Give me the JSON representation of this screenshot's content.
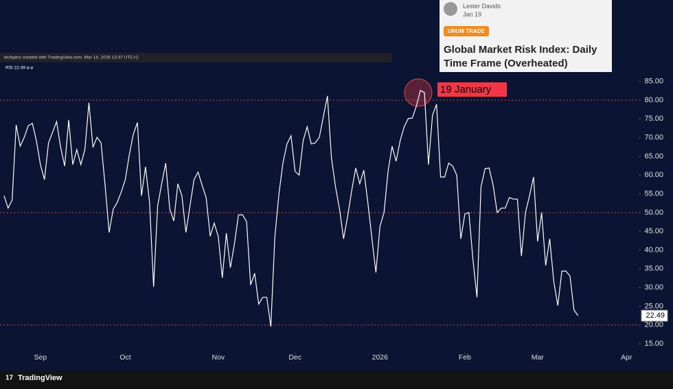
{
  "chart_data": {
    "type": "line",
    "attribution": "techpers created with TradingView.com, Mar 14, 2026 13:47 UTC+2",
    "indicator_label": "RSI 22.49 ⌀ ⌀",
    "annotation": "19 January",
    "xlim": [
      -1,
      157
    ],
    "xticks": [
      {
        "value": 9,
        "label": "Sep"
      },
      {
        "value": 30,
        "label": "Oct"
      },
      {
        "value": 53,
        "label": "Nov"
      },
      {
        "value": 72,
        "label": "Dec"
      },
      {
        "value": 93,
        "label": "2026"
      },
      {
        "value": 114,
        "label": "Feb"
      },
      {
        "value": 132,
        "label": "Mar"
      },
      {
        "value": 154,
        "label": "Apr"
      }
    ],
    "ylim": [
      13,
      87.5
    ],
    "yticks": [
      {
        "value": 15,
        "label": "15.00"
      },
      {
        "value": 20,
        "label": "20.00"
      },
      {
        "value": 25,
        "label": "25.00"
      },
      {
        "value": 30,
        "label": "30.00"
      },
      {
        "value": 35,
        "label": "35.00"
      },
      {
        "value": 40,
        "label": "40.00"
      },
      {
        "value": 45,
        "label": "45.00"
      },
      {
        "value": 50,
        "label": "50.00"
      },
      {
        "value": 55,
        "label": "55.00"
      },
      {
        "value": 60,
        "label": "60.00"
      },
      {
        "value": 65,
        "label": "65.00"
      },
      {
        "value": 70,
        "label": "70.00"
      },
      {
        "value": 75,
        "label": "75.00"
      },
      {
        "value": 80,
        "label": "80.00"
      },
      {
        "value": 85,
        "label": "85.00"
      }
    ],
    "hlines": [
      80,
      50,
      20
    ],
    "hline_color": "#c0504d",
    "series": [
      {
        "name": "RSI",
        "color": "#ffffff",
        "values": [
          54.5,
          51.2,
          53.3,
          73.4,
          67.7,
          70.1,
          73.2,
          73.8,
          69.2,
          62.8,
          58.8,
          68.6,
          71.4,
          74.3,
          67.4,
          62.4,
          74.7,
          62.8,
          66.8,
          62.8,
          66.8,
          79.3,
          67.4,
          70.1,
          68.6,
          57.3,
          44.7,
          50.9,
          52.7,
          55.5,
          58.8,
          65.5,
          71.0,
          74.0,
          54.5,
          62.2,
          52.7,
          30.2,
          51.8,
          57.7,
          63.2,
          50.9,
          47.8,
          57.7,
          54.5,
          44.7,
          51.8,
          58.8,
          60.8,
          57.3,
          54.0,
          43.7,
          47.2,
          43.6,
          32.6,
          44.5,
          35.3,
          41.7,
          49.4,
          49.4,
          47.6,
          30.7,
          33.8,
          25.6,
          27.4,
          27.4,
          19.6,
          43.6,
          54.9,
          63.3,
          68.3,
          70.5,
          61.0,
          60.0,
          69.2,
          72.9,
          68.3,
          68.6,
          70.1,
          75.6,
          81.1,
          64.6,
          56.9,
          50.9,
          43.0,
          49.0,
          55.8,
          61.9,
          57.7,
          61.3,
          52.7,
          43.2,
          34.0,
          46.3,
          50.0,
          61.0,
          67.7,
          63.7,
          69.2,
          72.9,
          75.1,
          75.2,
          78.4,
          82.6,
          82.0,
          62.8,
          76.0,
          78.9,
          59.5,
          59.5,
          63.2,
          62.4,
          60.0,
          43.0,
          49.6,
          50.0,
          37.5,
          27.4,
          56.9,
          61.7,
          61.9,
          57.3,
          50.0,
          51.2,
          51.2,
          54.0,
          53.6,
          53.6,
          38.4,
          50.0,
          54.5,
          59.5,
          42.3,
          50.0,
          35.9,
          43.0,
          31.6,
          25.2,
          34.4,
          34.4,
          33.1,
          24.0,
          22.49
        ]
      }
    ]
  },
  "card": {
    "author": "Lester Davids",
    "date": "Jan 19",
    "tag": "UNUM TRADE",
    "title": "Global Market Risk Index: Daily Time Frame (Overheated)"
  },
  "footer": {
    "brand": "TradingView"
  }
}
